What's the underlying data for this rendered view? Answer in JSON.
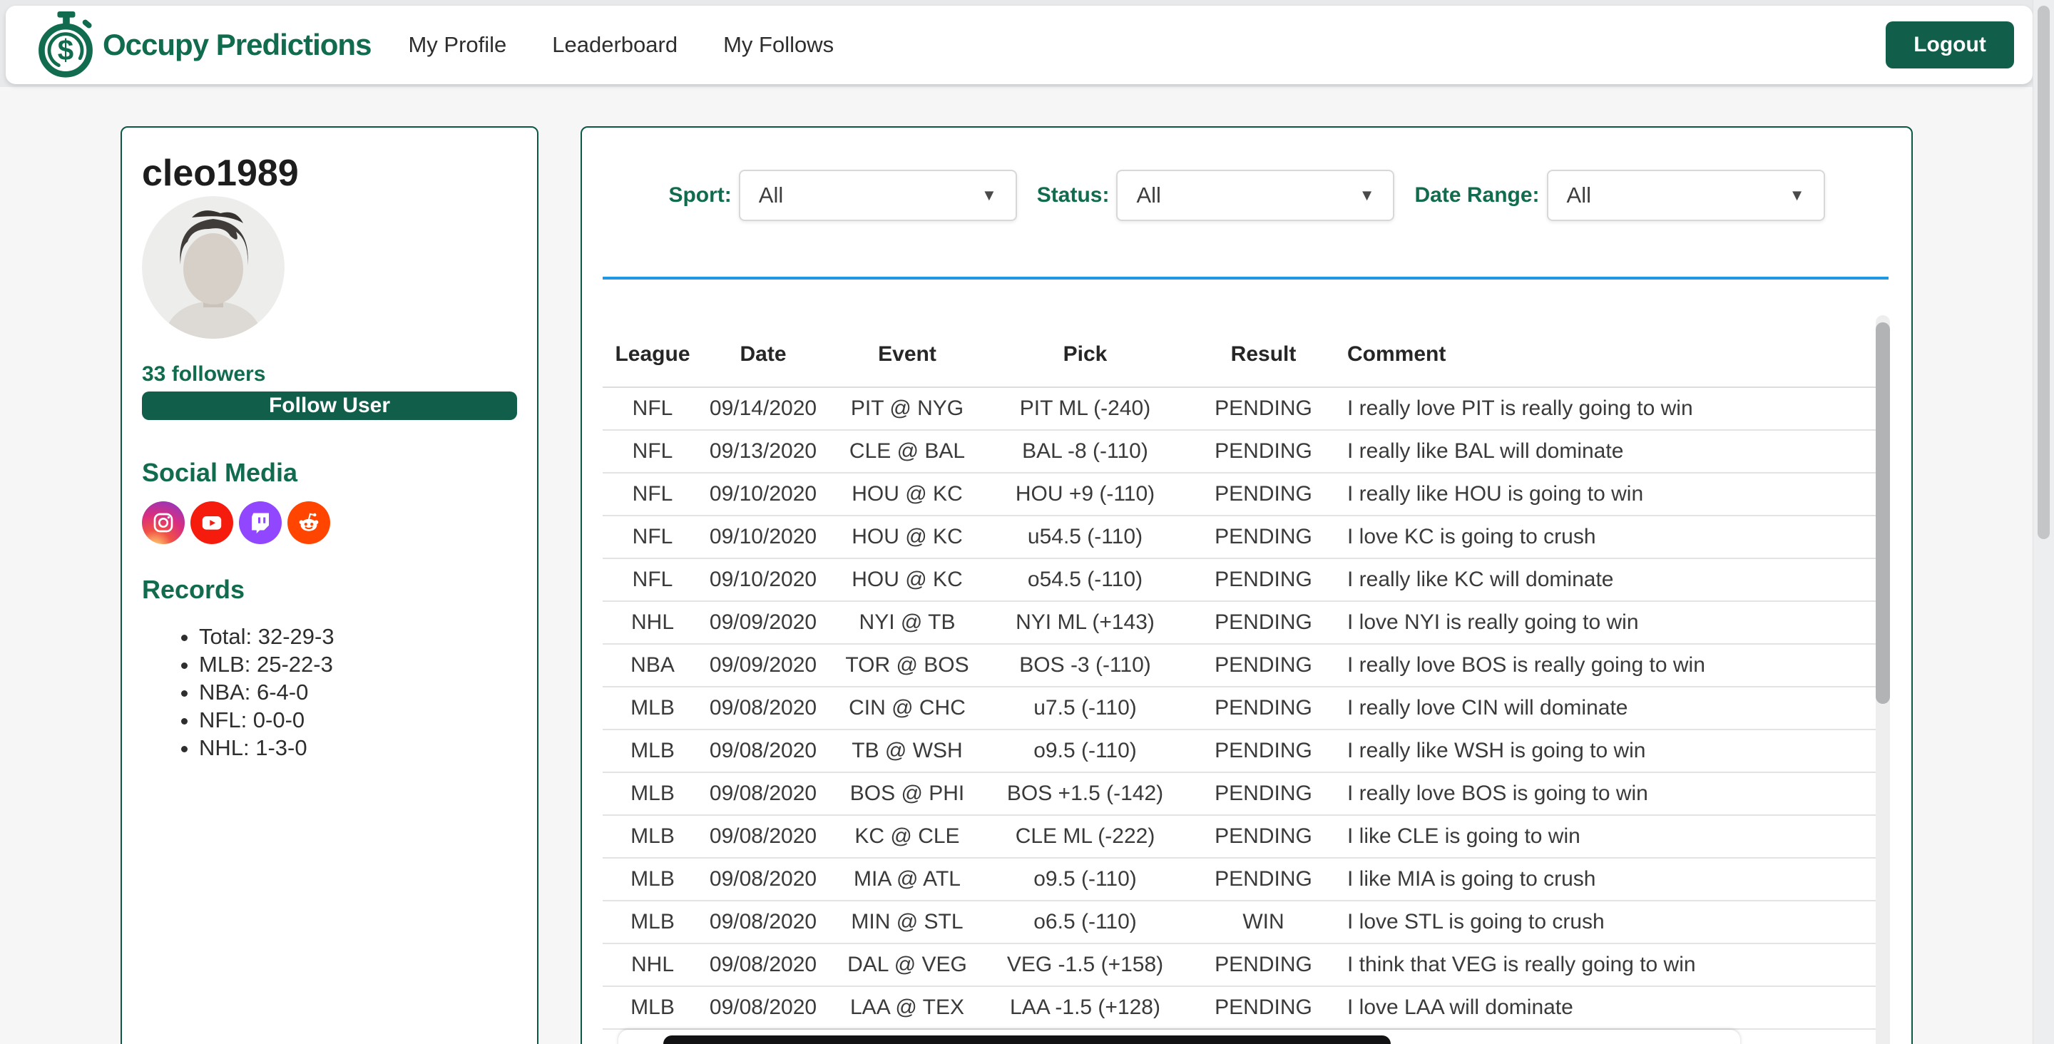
{
  "colors": {
    "brand_green": "#116b4e",
    "button_green": "#115e4b",
    "card_border_green": "#0b5844",
    "accent_blue": "#1e9ae5"
  },
  "header": {
    "brand": "Occupy Predictions",
    "nav": [
      "My Profile",
      "Leaderboard",
      "My Follows"
    ],
    "logout_label": "Logout"
  },
  "profile": {
    "username": "cleo1989",
    "followers_text": "33 followers",
    "follow_button_label": "Follow User",
    "social_media_heading": "Social Media",
    "social_icons": [
      "instagram",
      "youtube",
      "twitch",
      "reddit"
    ],
    "records_heading": "Records",
    "records": [
      "Total: 32-29-3",
      "MLB: 25-22-3",
      "NBA: 6-4-0",
      "NFL: 0-0-0",
      "NHL: 1-3-0"
    ]
  },
  "filters": {
    "sport_label": "Sport:",
    "sport_value": "All",
    "status_label": "Status:",
    "status_value": "All",
    "date_range_label": "Date Range:",
    "date_range_value": "All"
  },
  "table": {
    "columns": [
      "League",
      "Date",
      "Event",
      "Pick",
      "Result",
      "Comment"
    ],
    "rows": [
      [
        "NFL",
        "09/14/2020",
        "PIT @ NYG",
        "PIT ML (-240)",
        "PENDING",
        "I really love PIT is really going to win"
      ],
      [
        "NFL",
        "09/13/2020",
        "CLE @ BAL",
        "BAL -8 (-110)",
        "PENDING",
        "I really like BAL will dominate"
      ],
      [
        "NFL",
        "09/10/2020",
        "HOU @ KC",
        "HOU +9 (-110)",
        "PENDING",
        "I really like HOU is going to win"
      ],
      [
        "NFL",
        "09/10/2020",
        "HOU @ KC",
        "u54.5 (-110)",
        "PENDING",
        "I love KC is going to crush"
      ],
      [
        "NFL",
        "09/10/2020",
        "HOU @ KC",
        "o54.5 (-110)",
        "PENDING",
        "I really like KC will dominate"
      ],
      [
        "NHL",
        "09/09/2020",
        "NYI @ TB",
        "NYI ML (+143)",
        "PENDING",
        "I love NYI is really going to win"
      ],
      [
        "NBA",
        "09/09/2020",
        "TOR @ BOS",
        "BOS -3 (-110)",
        "PENDING",
        "I really love BOS is really going to win"
      ],
      [
        "MLB",
        "09/08/2020",
        "CIN @ CHC",
        "u7.5 (-110)",
        "PENDING",
        "I really love CIN will dominate"
      ],
      [
        "MLB",
        "09/08/2020",
        "TB @ WSH",
        "o9.5 (-110)",
        "PENDING",
        "I really like WSH is going to win"
      ],
      [
        "MLB",
        "09/08/2020",
        "BOS @ PHI",
        "BOS +1.5 (-142)",
        "PENDING",
        "I really love BOS is going to win"
      ],
      [
        "MLB",
        "09/08/2020",
        "KC @ CLE",
        "CLE ML (-222)",
        "PENDING",
        "I like CLE is going to win"
      ],
      [
        "MLB",
        "09/08/2020",
        "MIA @ ATL",
        "o9.5 (-110)",
        "PENDING",
        "I like MIA is going to crush"
      ],
      [
        "MLB",
        "09/08/2020",
        "MIN @ STL",
        "o6.5 (-110)",
        "WIN",
        "I love STL is going to crush"
      ],
      [
        "NHL",
        "09/08/2020",
        "DAL @ VEG",
        "VEG -1.5 (+158)",
        "PENDING",
        "I think that VEG is really going to win"
      ],
      [
        "MLB",
        "09/08/2020",
        "LAA @ TEX",
        "LAA -1.5 (+128)",
        "PENDING",
        "I love LAA will dominate"
      ]
    ]
  }
}
